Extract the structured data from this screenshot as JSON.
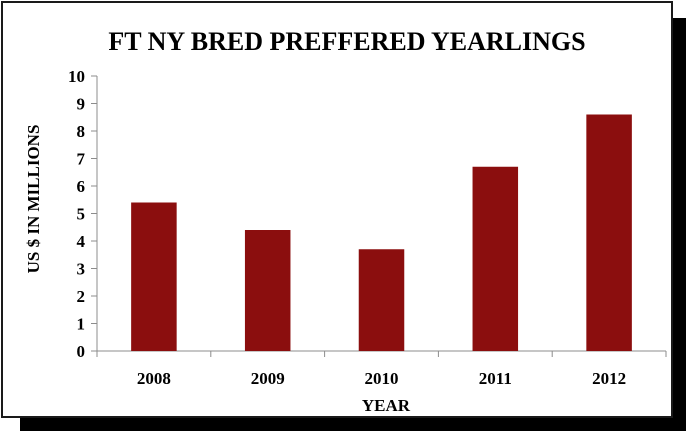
{
  "chart_data": {
    "type": "bar",
    "title": "FT NY BRED PREFFERED YEARLINGS",
    "xlabel": "YEAR",
    "ylabel": "US $ IN MILLIONS",
    "categories": [
      "2008",
      "2009",
      "2010",
      "2011",
      "2012"
    ],
    "values": [
      5.4,
      4.4,
      3.7,
      6.7,
      8.6
    ],
    "ylim": [
      0,
      10
    ],
    "yticks": [
      "0",
      "1",
      "2",
      "3",
      "4",
      "5",
      "6",
      "7",
      "8",
      "9",
      "10"
    ],
    "grid": false,
    "legend": "none",
    "bar_color": "#8b0e0e"
  }
}
